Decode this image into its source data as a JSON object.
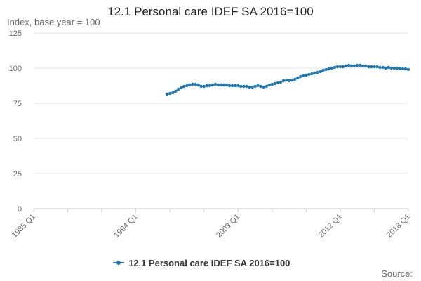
{
  "chart_data": {
    "type": "line",
    "title": "12.1 Personal care IDEF SA 2016=100",
    "ylabel": "Index, base year = 100",
    "xlabel": "",
    "source": "Source:",
    "ylim": [
      0,
      125
    ],
    "yticks": [
      0,
      25,
      50,
      75,
      100,
      125
    ],
    "xticks": [
      "1985 Q1",
      "1994 Q1",
      "2003 Q1",
      "2012 Q1",
      "2018 Q1"
    ],
    "x_start": "1996 Q4",
    "x_end": "2018 Q1",
    "grid": true,
    "legend_position": "bottom",
    "colors": {
      "series": "#1f77b4",
      "grid": "#e6e6e6",
      "axis": "#cccccc",
      "text": "#666666"
    },
    "series": [
      {
        "name": "12.1 Personal care IDEF SA 2016=100",
        "values": [
          81.5,
          82.0,
          82.5,
          83.5,
          85.0,
          86.0,
          87.0,
          87.5,
          88.0,
          88.5,
          88.5,
          88.0,
          87.0,
          87.0,
          87.5,
          87.5,
          88.0,
          88.5,
          88.0,
          88.0,
          88.0,
          88.0,
          87.5,
          87.5,
          87.5,
          87.5,
          87.0,
          87.0,
          87.0,
          86.5,
          86.5,
          87.0,
          87.5,
          87.0,
          86.5,
          87.0,
          88.0,
          88.5,
          89.0,
          89.5,
          90.0,
          91.0,
          91.5,
          91.0,
          91.5,
          92.0,
          93.0,
          94.0,
          94.5,
          95.0,
          95.5,
          96.0,
          96.5,
          97.0,
          97.5,
          98.5,
          99.0,
          99.5,
          100.0,
          100.5,
          101.0,
          101.0,
          101.0,
          101.5,
          102.0,
          101.5,
          101.5,
          102.0,
          102.0,
          101.5,
          101.5,
          101.0,
          101.0,
          101.0,
          101.0,
          100.5,
          100.5,
          100.0,
          100.5,
          100.0,
          100.0,
          100.0,
          99.5,
          99.5,
          99.5,
          99.0
        ]
      }
    ]
  }
}
